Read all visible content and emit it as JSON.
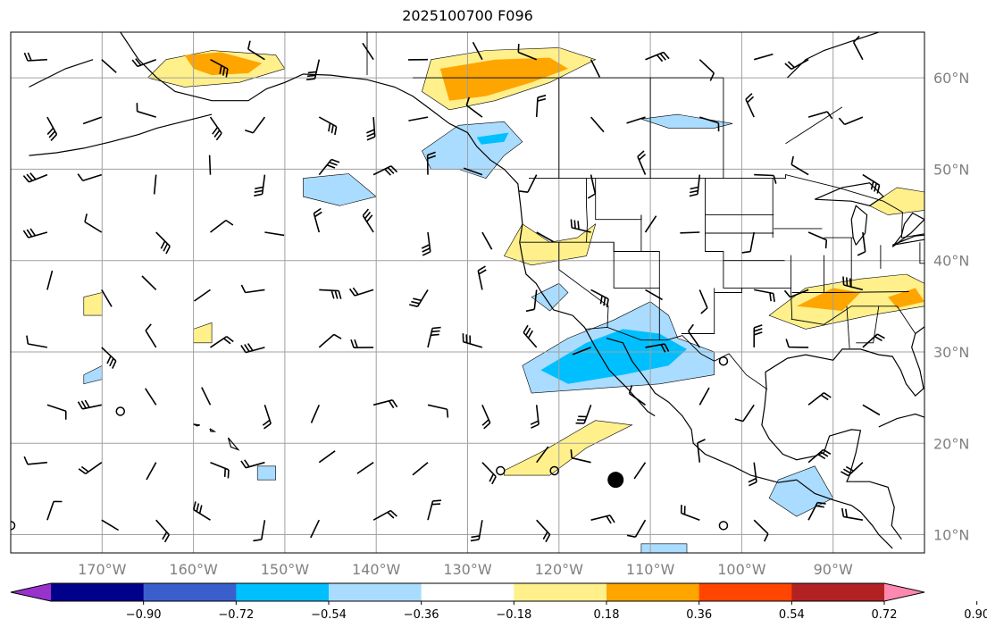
{
  "title": "2025100700 F096",
  "map": {
    "projection": "PlateCarree",
    "lon_range": [
      -180,
      -80
    ],
    "lat_range": [
      8,
      65
    ],
    "lon_ticks": [
      {
        "lon": -170,
        "label": "170°W"
      },
      {
        "lon": -160,
        "label": "160°W"
      },
      {
        "lon": -150,
        "label": "150°W"
      },
      {
        "lon": -140,
        "label": "140°W"
      },
      {
        "lon": -130,
        "label": "130°W"
      },
      {
        "lon": -120,
        "label": "120°W"
      },
      {
        "lon": -110,
        "label": "110°W"
      },
      {
        "lon": -100,
        "label": "100°W"
      },
      {
        "lon": -90,
        "label": "90°W"
      }
    ],
    "lat_ticks": [
      {
        "lat": 60,
        "label": "60°N"
      },
      {
        "lat": 50,
        "label": "50°N"
      },
      {
        "lat": 40,
        "label": "40°N"
      },
      {
        "lat": 30,
        "label": "30°N"
      },
      {
        "lat": 20,
        "label": "20°N"
      },
      {
        "lat": 10,
        "label": "10°N"
      }
    ],
    "gridlines": true,
    "grid_color": "#a0a0a0",
    "field_features": [
      {
        "polarity": "positive",
        "level": 1,
        "color": "#fff08c",
        "pts": [
          [
            -163,
            62
          ],
          [
            -158,
            63
          ],
          [
            -151,
            62.5
          ],
          [
            -150,
            61
          ],
          [
            -155,
            59.5
          ],
          [
            -161,
            59
          ],
          [
            -165,
            60
          ]
        ]
      },
      {
        "polarity": "positive",
        "level": 2,
        "color": "#ffa500",
        "pts": [
          [
            -161,
            62.5
          ],
          [
            -157,
            62.8
          ],
          [
            -152.5,
            61.6
          ],
          [
            -154,
            60.5
          ],
          [
            -158,
            60.3
          ],
          [
            -160,
            61
          ]
        ]
      },
      {
        "polarity": "positive",
        "level": 1,
        "color": "#fff08c",
        "pts": [
          [
            -134,
            62
          ],
          [
            -128,
            63
          ],
          [
            -120,
            63.3
          ],
          [
            -116,
            62
          ],
          [
            -121,
            59.5
          ],
          [
            -127,
            57.5
          ],
          [
            -132,
            56.5
          ],
          [
            -135,
            58.5
          ]
        ]
      },
      {
        "polarity": "positive",
        "level": 2,
        "color": "#ffa500",
        "pts": [
          [
            -133,
            61
          ],
          [
            -127,
            62
          ],
          [
            -121,
            62.2
          ],
          [
            -119,
            61
          ],
          [
            -123,
            59.5
          ],
          [
            -128,
            58
          ],
          [
            -132,
            57.5
          ]
        ]
      },
      {
        "polarity": "negative",
        "level": 1,
        "color": "#aadcff",
        "pts": [
          [
            -135,
            52
          ],
          [
            -131,
            54.8
          ],
          [
            -126,
            55.2
          ],
          [
            -124,
            53
          ],
          [
            -126,
            51.5
          ],
          [
            -128,
            49
          ],
          [
            -131,
            50
          ],
          [
            -134,
            50
          ]
        ]
      },
      {
        "polarity": "negative",
        "level": 2,
        "color": "#00bfff",
        "pts": [
          [
            -129,
            53.5
          ],
          [
            -125.5,
            54
          ],
          [
            -126,
            53
          ],
          [
            -128.5,
            52.7
          ]
        ]
      },
      {
        "polarity": "negative",
        "level": 1,
        "color": "#aadcff",
        "pts": [
          [
            -111,
            55.5
          ],
          [
            -107,
            56
          ],
          [
            -101,
            55
          ],
          [
            -103,
            54.5
          ],
          [
            -108,
            54.5
          ]
        ]
      },
      {
        "polarity": "negative",
        "level": 1,
        "color": "#aadcff",
        "pts": [
          [
            -148,
            49
          ],
          [
            -143,
            49.5
          ],
          [
            -140,
            47
          ],
          [
            -144,
            46
          ],
          [
            -148,
            47
          ]
        ]
      },
      {
        "polarity": "positive",
        "level": 1,
        "color": "#fff08c",
        "pts": [
          [
            -126,
            40.5
          ],
          [
            -124,
            44
          ],
          [
            -121,
            42
          ],
          [
            -118,
            42.5
          ],
          [
            -116,
            44
          ],
          [
            -117,
            40.5
          ],
          [
            -123,
            39.5
          ]
        ]
      },
      {
        "polarity": "negative",
        "level": 1,
        "color": "#aadcff",
        "pts": [
          [
            -123,
            36
          ],
          [
            -120,
            37.5
          ],
          [
            -119,
            36.5
          ],
          [
            -121,
            34.5
          ]
        ]
      },
      {
        "polarity": "negative",
        "level": 1,
        "color": "#aadcff",
        "pts": [
          [
            -124,
            28.5
          ],
          [
            -119,
            31.5
          ],
          [
            -114,
            33.5
          ],
          [
            -110,
            35.5
          ],
          [
            -108,
            34
          ],
          [
            -107,
            31.5
          ],
          [
            -103,
            30
          ],
          [
            -103,
            27.5
          ],
          [
            -109,
            26.5
          ],
          [
            -116,
            26
          ],
          [
            -123,
            25.5
          ]
        ]
      },
      {
        "polarity": "negative",
        "level": 2,
        "color": "#00bfff",
        "pts": [
          [
            -122,
            28
          ],
          [
            -117,
            31
          ],
          [
            -113,
            32.5
          ],
          [
            -109,
            32
          ],
          [
            -106,
            30.3
          ],
          [
            -108,
            28.5
          ],
          [
            -113,
            27.5
          ],
          [
            -119,
            26.5
          ]
        ]
      },
      {
        "polarity": "positive",
        "level": 1,
        "color": "#fff08c",
        "pts": [
          [
            -126,
            17
          ],
          [
            -122,
            19
          ],
          [
            -116,
            22.5
          ],
          [
            -112,
            22
          ],
          [
            -117,
            19.5
          ],
          [
            -121,
            16.5
          ],
          [
            -126,
            16.5
          ]
        ]
      },
      {
        "polarity": "positive",
        "level": 1,
        "color": "#fff08c",
        "pts": [
          [
            -97,
            34
          ],
          [
            -93,
            37
          ],
          [
            -87,
            38
          ],
          [
            -82,
            38.5
          ],
          [
            -79,
            37
          ],
          [
            -80,
            35
          ],
          [
            -86,
            34
          ],
          [
            -93,
            32.5
          ]
        ]
      },
      {
        "polarity": "positive",
        "level": 2,
        "color": "#ffa500",
        "pts": [
          [
            -94,
            35
          ],
          [
            -90,
            37
          ],
          [
            -87,
            36.5
          ],
          [
            -89,
            34.5
          ]
        ]
      },
      {
        "polarity": "positive",
        "level": 2,
        "color": "#ffa500",
        "pts": [
          [
            -84,
            36
          ],
          [
            -81,
            37
          ],
          [
            -80,
            35.5
          ],
          [
            -83,
            34.8
          ]
        ]
      },
      {
        "polarity": "positive",
        "level": 1,
        "color": "#fff08c",
        "pts": [
          [
            -86,
            46
          ],
          [
            -83,
            48
          ],
          [
            -80,
            47.5
          ],
          [
            -80,
            45.5
          ],
          [
            -84,
            45
          ]
        ]
      },
      {
        "polarity": "negative",
        "level": 1,
        "color": "#aadcff",
        "pts": [
          [
            -96,
            16
          ],
          [
            -92,
            17.5
          ],
          [
            -90,
            14
          ],
          [
            -94,
            12
          ],
          [
            -97,
            14
          ]
        ]
      },
      {
        "polarity": "positive",
        "level": 1,
        "color": "#fff08c",
        "pts": [
          [
            -172,
            36
          ],
          [
            -170,
            36.5
          ],
          [
            -170,
            34
          ],
          [
            -172,
            34
          ]
        ]
      },
      {
        "polarity": "positive",
        "level": 1,
        "color": "#fff08c",
        "pts": [
          [
            -160,
            32.5
          ],
          [
            -158,
            33.2
          ],
          [
            -158,
            31
          ],
          [
            -160,
            31
          ]
        ]
      },
      {
        "polarity": "negative",
        "level": 1,
        "color": "#aadcff",
        "pts": [
          [
            -172,
            27.5
          ],
          [
            -170,
            28.5
          ],
          [
            -170,
            27
          ],
          [
            -172,
            26.5
          ]
        ]
      },
      {
        "polarity": "negative",
        "level": 1,
        "color": "#aadcff",
        "pts": [
          [
            -153,
            17.5
          ],
          [
            -151,
            17.5
          ],
          [
            -151,
            16
          ],
          [
            -153,
            16
          ]
        ]
      },
      {
        "polarity": "negative",
        "level": 1,
        "color": "#aadcff",
        "pts": [
          [
            -111,
            9
          ],
          [
            -106,
            9
          ],
          [
            -106,
            7.8
          ],
          [
            -111,
            7.8
          ]
        ]
      }
    ],
    "markers": [
      {
        "type": "dot",
        "lon": -113.8,
        "lat": 16,
        "label": ""
      },
      {
        "type": "calm",
        "lon": -168,
        "lat": 23.5,
        "label": ""
      },
      {
        "type": "calm",
        "lon": -126.4,
        "lat": 17,
        "label": ""
      },
      {
        "type": "calm",
        "lon": -120.5,
        "lat": 17,
        "label": ""
      },
      {
        "type": "calm",
        "lon": -102,
        "lat": 29,
        "label": ""
      },
      {
        "type": "calm",
        "lon": -102,
        "lat": 11,
        "label": ""
      },
      {
        "type": "calm",
        "lon": -180,
        "lat": 11,
        "label": ""
      }
    ]
  },
  "colorbar": {
    "colors": [
      "#9932cc",
      "#00008b",
      "#3a5fcd",
      "#00bfff",
      "#aadcff",
      "#ffffff",
      "#fff08c",
      "#ffa500",
      "#ff4500",
      "#b22222",
      "#ff88b0"
    ],
    "tick_labels": [
      "−0.90",
      "−0.72",
      "−0.54",
      "−0.36",
      "−0.18",
      "0.18",
      "0.36",
      "0.54",
      "0.72",
      "0.90"
    ]
  }
}
